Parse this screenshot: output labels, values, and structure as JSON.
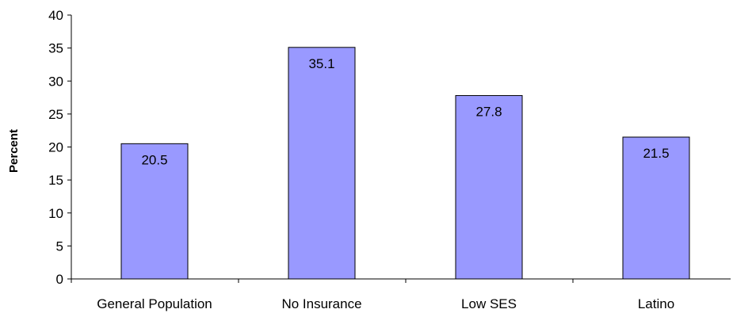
{
  "chart_data": {
    "type": "bar",
    "title": "",
    "xlabel": "",
    "ylabel": "Percent",
    "categories": [
      "General Population",
      "No Insurance",
      "Low SES",
      "Latino"
    ],
    "values": [
      20.5,
      35.1,
      27.8,
      21.5
    ],
    "data_labels": [
      "20.5",
      "35.1",
      "27.8",
      "21.5"
    ],
    "ylim": [
      0,
      40
    ],
    "yticks": [
      0,
      5,
      10,
      15,
      20,
      25,
      30,
      35,
      40
    ],
    "grid": false,
    "legend": "none",
    "colors": {
      "bar_fill": "#9999ff",
      "bar_stroke": "#000000",
      "axis": "#000000"
    }
  }
}
